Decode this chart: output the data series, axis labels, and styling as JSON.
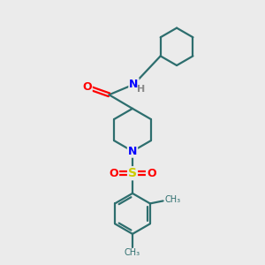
{
  "bg_color": "#ebebeb",
  "bond_color": "#2d6e6e",
  "N_color": "#0000ff",
  "O_color": "#ff0000",
  "S_color": "#cccc00",
  "H_color": "#888888",
  "line_width": 1.6,
  "font_size": 9,
  "figsize": [
    3.0,
    3.0
  ],
  "dpi": 100,
  "xlim": [
    0,
    10
  ],
  "ylim": [
    0,
    10
  ]
}
